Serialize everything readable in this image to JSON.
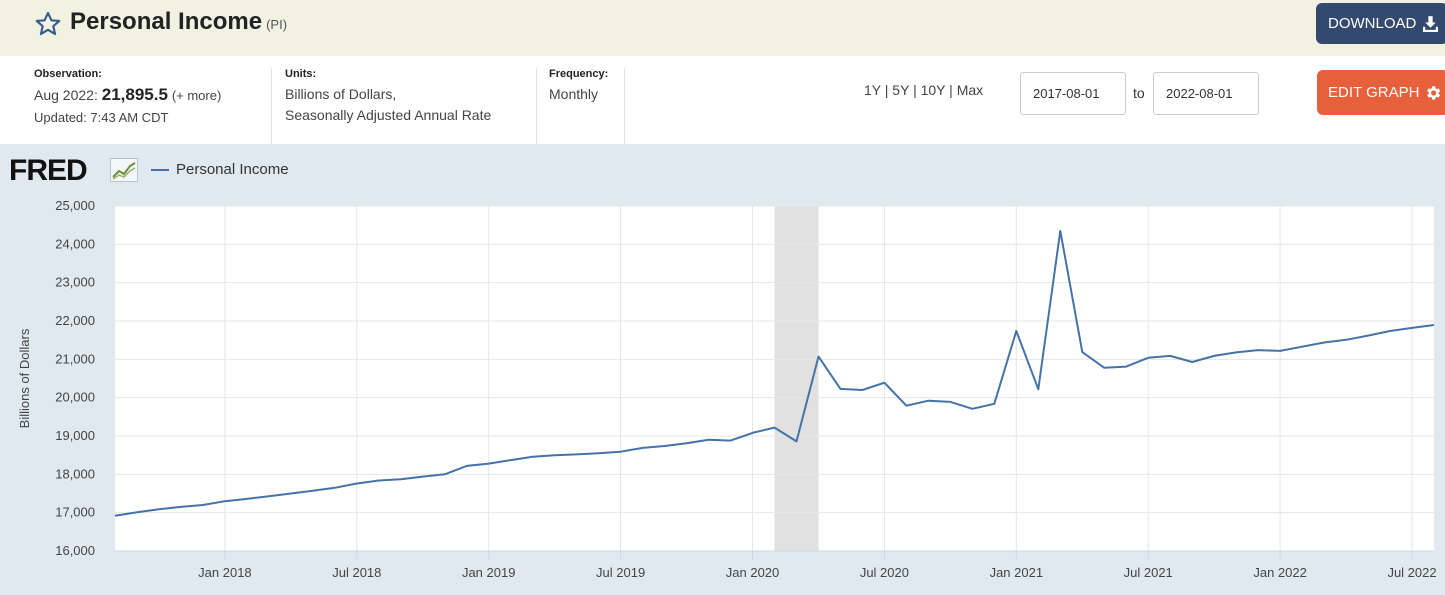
{
  "header": {
    "title": "Personal Income",
    "series_code": "(PI)",
    "download_label": "DOWNLOAD"
  },
  "meta": {
    "observation_label": "Observation:",
    "observation_date": "Aug 2022:",
    "observation_value": "21,895.5",
    "observation_more": "(+ more)",
    "updated": "Updated: 7:43 AM CDT",
    "units_label": "Units:",
    "units_line1": "Billions of Dollars,",
    "units_line2": "Seasonally Adjusted Annual Rate",
    "frequency_label": "Frequency:",
    "frequency_value": "Monthly"
  },
  "controls": {
    "range_1y": "1Y",
    "range_5y": "5Y",
    "range_10y": "10Y",
    "range_max": "Max",
    "separator": "|",
    "start_date": "2017-08-01",
    "to_label": "to",
    "end_date": "2022-08-01",
    "edit_label": "EDIT GRAPH"
  },
  "colors": {
    "line": "#4572a7",
    "recession": "#e1e1e1",
    "header_bg": "#f1f2e1",
    "download_bg": "#33496e",
    "edit_bg": "#e5603b"
  },
  "icons": {
    "favorite": "star-icon",
    "download": "download-icon",
    "edit": "gear-icon",
    "logo": "fred-chart-icon"
  },
  "chart_data": {
    "type": "line",
    "logo_text": "FRED",
    "ylabel": "Billions of Dollars",
    "ylim": [
      16000,
      25000
    ],
    "yticks": [
      16000,
      17000,
      18000,
      19000,
      20000,
      21000,
      22000,
      23000,
      24000,
      25000
    ],
    "ytick_labels": [
      "16,000",
      "17,000",
      "18,000",
      "19,000",
      "20,000",
      "21,000",
      "22,000",
      "23,000",
      "24,000",
      "25,000"
    ],
    "xtick_labels": [
      "Jan 2018",
      "Jul 2018",
      "Jan 2019",
      "Jul 2019",
      "Jan 2020",
      "Jul 2020",
      "Jan 2021",
      "Jul 2021",
      "Jan 2022",
      "Jul 2022"
    ],
    "xtick_dates": [
      "2018-01",
      "2018-07",
      "2019-01",
      "2019-07",
      "2020-01",
      "2020-07",
      "2021-01",
      "2021-07",
      "2022-01",
      "2022-07"
    ],
    "xlim": [
      "2017-08",
      "2022-08"
    ],
    "grid": true,
    "recession": {
      "start": "2020-02",
      "end": "2020-04"
    },
    "series": [
      {
        "name": "Personal Income",
        "x": [
          "2017-08",
          "2017-09",
          "2017-10",
          "2017-11",
          "2017-12",
          "2018-01",
          "2018-02",
          "2018-03",
          "2018-04",
          "2018-05",
          "2018-06",
          "2018-07",
          "2018-08",
          "2018-09",
          "2018-10",
          "2018-11",
          "2018-12",
          "2019-01",
          "2019-02",
          "2019-03",
          "2019-04",
          "2019-05",
          "2019-06",
          "2019-07",
          "2019-08",
          "2019-09",
          "2019-10",
          "2019-11",
          "2019-12",
          "2020-01",
          "2020-02",
          "2020-03",
          "2020-04",
          "2020-05",
          "2020-06",
          "2020-07",
          "2020-08",
          "2020-09",
          "2020-10",
          "2020-11",
          "2020-12",
          "2021-01",
          "2021-02",
          "2021-03",
          "2021-04",
          "2021-05",
          "2021-06",
          "2021-07",
          "2021-08",
          "2021-09",
          "2021-10",
          "2021-11",
          "2021-12",
          "2022-01",
          "2022-02",
          "2022-03",
          "2022-04",
          "2022-05",
          "2022-06",
          "2022-07",
          "2022-08"
        ],
        "values": [
          16920,
          17010,
          17090,
          17150,
          17200,
          17300,
          17360,
          17430,
          17500,
          17570,
          17650,
          17760,
          17840,
          17870,
          17940,
          18000,
          18220,
          18280,
          18370,
          18460,
          18500,
          18520,
          18550,
          18590,
          18690,
          18740,
          18810,
          18900,
          18880,
          19080,
          19220,
          18860,
          21070,
          20230,
          20200,
          20390,
          19790,
          19920,
          19890,
          19710,
          19840,
          21740,
          20220,
          24350,
          21190,
          20780,
          20810,
          21040,
          21090,
          20930,
          21090,
          21180,
          21240,
          21220,
          21330,
          21440,
          21510,
          21620,
          21740,
          21820,
          21895.5
        ]
      }
    ]
  }
}
